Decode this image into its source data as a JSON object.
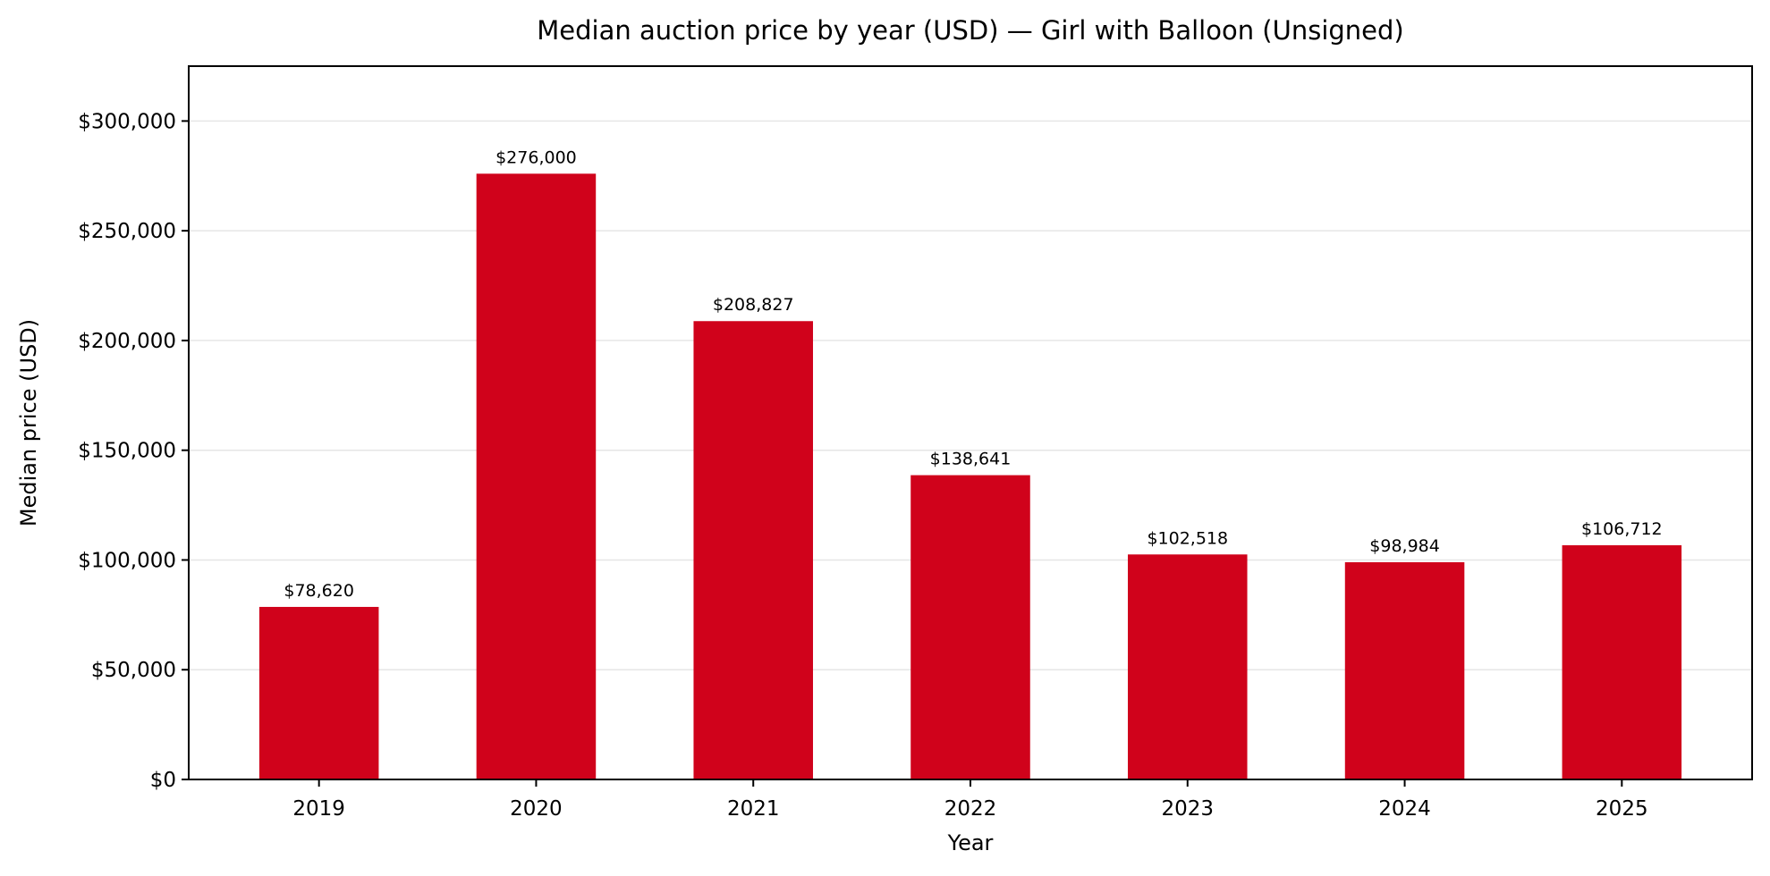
{
  "chart_data": {
    "type": "bar",
    "title": "Median auction price by year (USD) — Girl with Balloon (Unsigned)",
    "xlabel": "Year",
    "ylabel": "Median price (USD)",
    "categories": [
      "2019",
      "2020",
      "2021",
      "2022",
      "2023",
      "2024",
      "2025"
    ],
    "values": [
      78620,
      276000,
      208827,
      138641,
      102518,
      98984,
      106712
    ],
    "value_labels": [
      "$78,620",
      "$276,000",
      "$208,827",
      "$138,641",
      "$102,518",
      "$98,984",
      "$106,712"
    ],
    "ylim": [
      0,
      325000
    ],
    "yticks": [
      0,
      50000,
      100000,
      150000,
      200000,
      250000,
      300000
    ],
    "ytick_labels": [
      "$0",
      "$50,000",
      "$100,000",
      "$150,000",
      "$200,000",
      "$250,000",
      "$300,000"
    ],
    "grid": "y",
    "bar_color": "#d0021b"
  }
}
